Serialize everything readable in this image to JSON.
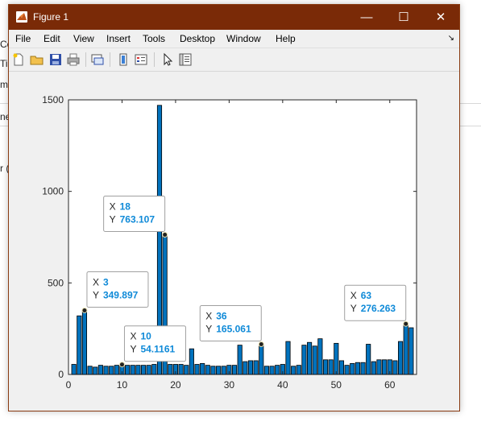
{
  "background_app": {
    "fragments": [
      "Co",
      "Ti",
      "m",
      "ne_",
      "r ("
    ]
  },
  "window": {
    "title": "Figure 1",
    "controls": {
      "minimize": "—",
      "maximize": "☐",
      "close": "✕"
    }
  },
  "menu": {
    "items": [
      "File",
      "Edit",
      "View",
      "Insert",
      "Tools",
      "Desktop",
      "Window",
      "Help"
    ],
    "dock_glyph": "↘"
  },
  "toolbar": {
    "tools": [
      "new-figure-icon",
      "open-file-icon",
      "save-icon",
      "print-icon",
      "link-plot-icon",
      "colorbar-icon",
      "legend-icon",
      "pointer-icon",
      "property-inspector-icon"
    ]
  },
  "colors": {
    "title_bar": "#7a2a07",
    "bar_fill": "#0072bd",
    "datatip_value": "#0f8ad8"
  },
  "chart_data": {
    "type": "bar",
    "x": [
      1,
      2,
      3,
      4,
      5,
      6,
      7,
      8,
      9,
      10,
      11,
      12,
      13,
      14,
      15,
      16,
      17,
      18,
      19,
      20,
      21,
      22,
      23,
      24,
      25,
      26,
      27,
      28,
      29,
      30,
      31,
      32,
      33,
      34,
      35,
      36,
      37,
      38,
      39,
      40,
      41,
      42,
      43,
      44,
      45,
      46,
      47,
      48,
      49,
      50,
      51,
      52,
      53,
      54,
      55,
      56,
      57,
      58,
      59,
      60,
      61,
      62,
      63,
      64
    ],
    "values": [
      55,
      320,
      349.897,
      45,
      40,
      50,
      45,
      45,
      50,
      54.1161,
      50,
      50,
      50,
      50,
      50,
      55,
      1470,
      763.107,
      55,
      55,
      55,
      50,
      140,
      55,
      60,
      50,
      45,
      45,
      45,
      50,
      50,
      160,
      70,
      75,
      75,
      165.061,
      45,
      45,
      50,
      55,
      180,
      45,
      50,
      160,
      175,
      155,
      195,
      80,
      80,
      170,
      75,
      50,
      60,
      65,
      65,
      165,
      70,
      80,
      80,
      80,
      75,
      180,
      276.263,
      255
    ],
    "xlim": [
      0,
      65
    ],
    "ylim": [
      0,
      1500
    ],
    "xticks": [
      0,
      10,
      20,
      30,
      40,
      50,
      60
    ],
    "yticks": [
      0,
      500,
      1000,
      1500
    ],
    "grid": false,
    "datatips": [
      {
        "x_label": "X",
        "x_value": "3",
        "y_label": "Y",
        "y_value": "349.897",
        "x": 3,
        "y": 349.897,
        "anchor": "above-right"
      },
      {
        "x_label": "X",
        "x_value": "10",
        "y_label": "Y",
        "y_value": "54.1161",
        "x": 10,
        "y": 54.1161,
        "anchor": "above-right"
      },
      {
        "x_label": "X",
        "x_value": "18",
        "y_label": "Y",
        "y_value": "763.107",
        "x": 18,
        "y": 763.107,
        "anchor": "above-left"
      },
      {
        "x_label": "X",
        "x_value": "36",
        "y_label": "Y",
        "y_value": "165.061",
        "x": 36,
        "y": 165.061,
        "anchor": "above-left"
      },
      {
        "x_label": "X",
        "x_value": "63",
        "y_label": "Y",
        "y_value": "276.263",
        "x": 63,
        "y": 276.263,
        "anchor": "above-left"
      }
    ]
  }
}
